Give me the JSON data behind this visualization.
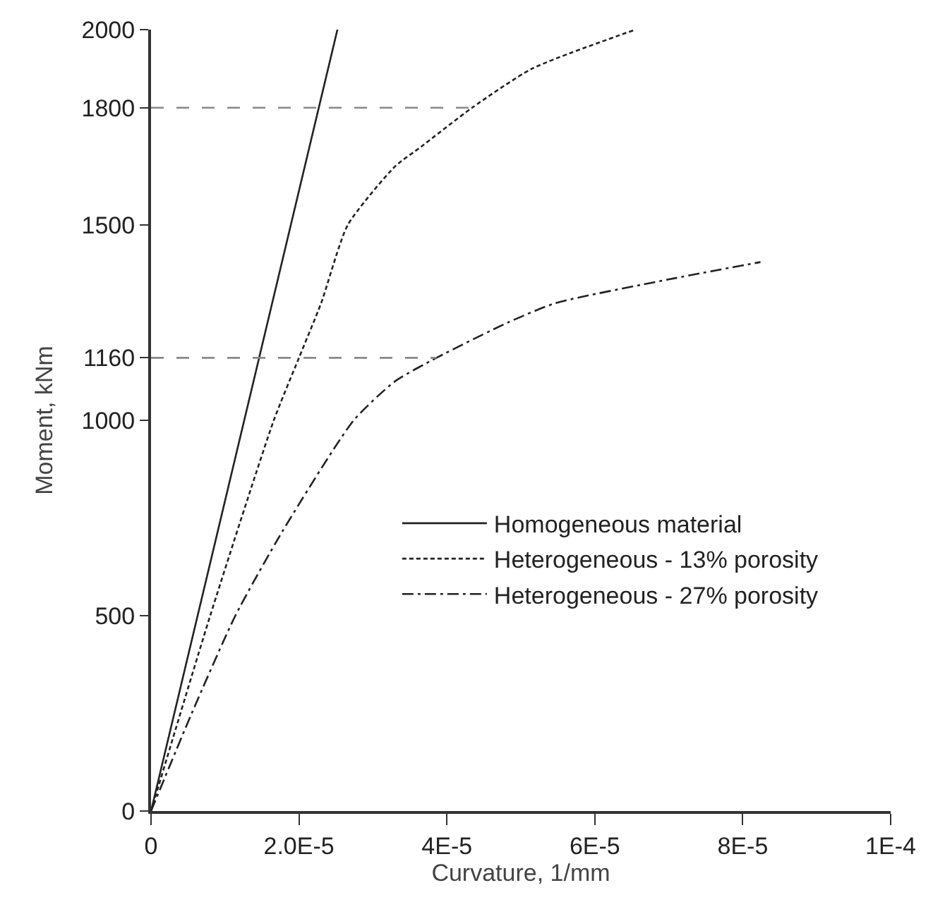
{
  "chart_data": {
    "type": "line",
    "xlabel": "Curvature, 1/mm",
    "ylabel": "Moment, kNm",
    "xlim": [
      0,
      0.0001
    ],
    "xticks": [
      0,
      {
        "value": 2e-05,
        "label": "2.0E-5"
      },
      {
        "value": 4e-05,
        "label": "4E-5"
      },
      {
        "value": 6e-05,
        "label": "6E-5"
      },
      {
        "value": 8e-05,
        "label": "8E-5"
      },
      {
        "value": 0.0001,
        "label": "1E-4"
      }
    ],
    "ylim": [
      0,
      2000
    ],
    "yticks": [
      0,
      500,
      1000,
      1160,
      1500,
      1800,
      2000
    ],
    "legend": "right",
    "marker": "none",
    "series": [
      {
        "name": "Homogeneous material",
        "color": "#222222",
        "line_style": "solid",
        "x": [
          0,
          2.52e-05
        ],
        "values": [
          0,
          2000
        ]
      },
      {
        "name": "Heterogeneous - 13% porosity",
        "color": "#222222",
        "line_style": "dotted",
        "x": [
          0,
          8e-06,
          1.66e-05,
          2e-05,
          2.3e-05,
          2.66e-05,
          3.3e-05,
          3.65e-05,
          4.34e-05,
          5.15e-05,
          6.55e-05
        ],
        "values": [
          0,
          500,
          1000,
          1160,
          1300,
          1500,
          1650,
          1700,
          1800,
          1900,
          2000
        ]
      },
      {
        "name": "Heterogeneous - 27% porosity",
        "color": "#222222",
        "line_style": "dashdot",
        "x": [
          0,
          5.5e-06,
          1.14e-05,
          1.78e-05,
          2.74e-05,
          3.3e-05,
          3.86e-05,
          4.82e-05,
          5.47e-05,
          6.98e-05,
          8.24e-05
        ],
        "values": [
          0,
          250,
          500,
          717,
          1000,
          1100,
          1160,
          1250,
          1300,
          1360,
          1405
        ]
      },
      {
        "color": "#888888",
        "line_style": "dashed",
        "x": [
          0,
          4.34e-05
        ],
        "values": [
          1800,
          1800
        ]
      },
      {
        "color": "#888888",
        "line_style": "dashed",
        "x": [
          0,
          3.86e-05
        ],
        "values": [
          1160,
          1160
        ]
      }
    ]
  }
}
